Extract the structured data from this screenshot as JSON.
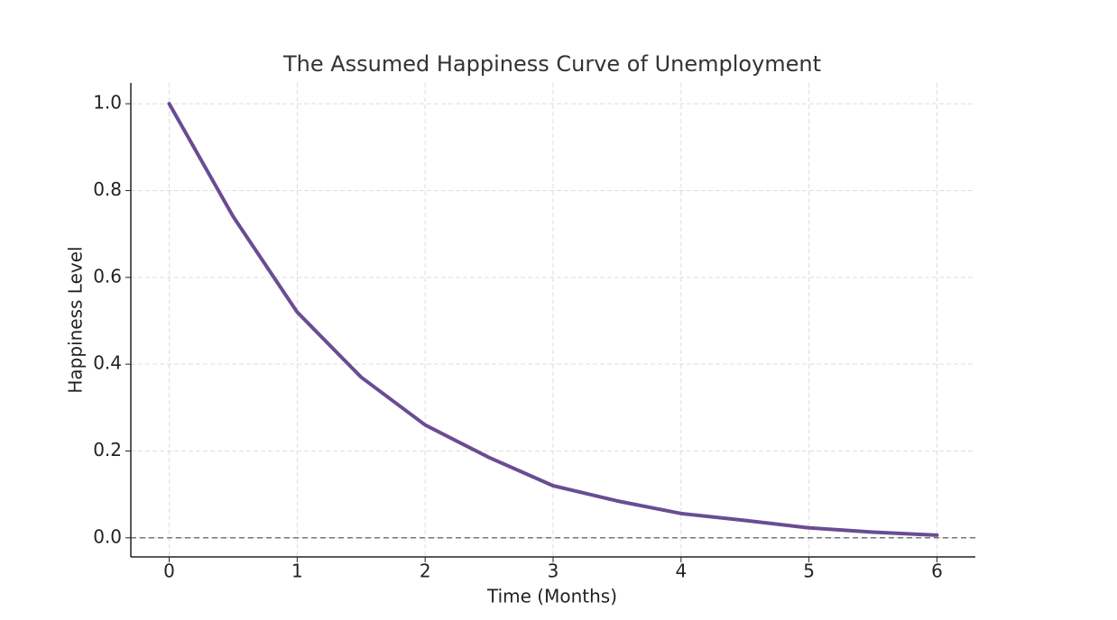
{
  "chart_data": {
    "type": "line",
    "title": "The Assumed Happiness Curve of Unemployment",
    "x_label": "Time (Months)",
    "y_label": "Happiness Level",
    "x": [
      0,
      0.5,
      1,
      1.5,
      2,
      2.5,
      3,
      3.5,
      4,
      4.5,
      5,
      5.5,
      6
    ],
    "values": [
      1.0,
      0.74,
      0.52,
      0.37,
      0.26,
      0.185,
      0.12,
      0.085,
      0.056,
      0.04,
      0.023,
      0.013,
      0.006
    ],
    "color": "#6a4c93",
    "xlim": [
      -0.3,
      6.3
    ],
    "ylim": [
      -0.044,
      1.048
    ],
    "xticks": [
      0,
      1,
      2,
      3,
      4,
      5,
      6
    ],
    "yticks": [
      {
        "value": 0,
        "label": "0.0"
      },
      0.2,
      0.4,
      0.6,
      0.8,
      {
        "value": 1,
        "label": "1.0"
      }
    ],
    "hline": 0,
    "grid": true
  }
}
